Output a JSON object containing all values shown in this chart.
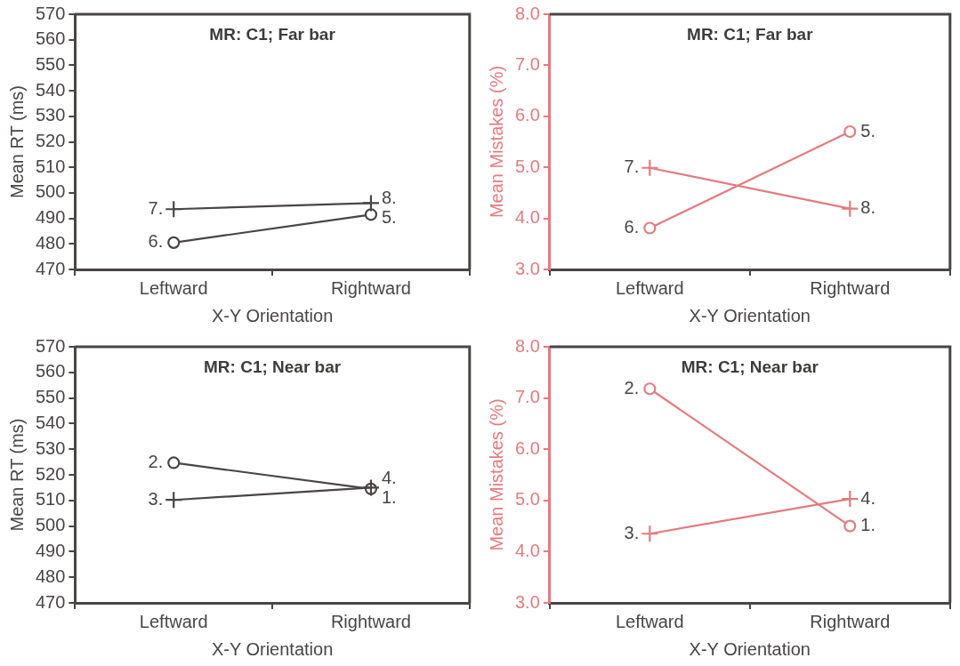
{
  "chart_data": [
    {
      "type": "line",
      "title": "MR: C1; Far bar",
      "xlabel": "X-Y Orientation",
      "ylabel": "Mean RT (ms)",
      "categories": [
        "Leftward",
        "Rightward"
      ],
      "ylim": [
        470,
        570
      ],
      "yticks": [
        470,
        480,
        490,
        500,
        510,
        520,
        530,
        540,
        550,
        560,
        570
      ],
      "grid": false,
      "legend": false,
      "series": [
        {
          "color": "#4a4444",
          "marker": "circle",
          "values": [
            480.5,
            491.5
          ]
        },
        {
          "color": "#4a4444",
          "marker": "cross",
          "values": [
            493.6,
            496
          ]
        }
      ],
      "annotations": [
        {
          "text": "6.",
          "x": "Leftward",
          "y": 480.5
        },
        {
          "text": "5.",
          "x": "Rightward",
          "y": 491.5
        },
        {
          "text": "7.",
          "x": "Leftward",
          "y": 493.6
        },
        {
          "text": "8.",
          "x": "Rightward",
          "y": 496
        }
      ]
    },
    {
      "type": "line",
      "title": "MR: C1; Far bar",
      "xlabel": "X-Y Orientation",
      "ylabel": "Mean Mistakes (%)",
      "categories": [
        "Leftward",
        "Rightward"
      ],
      "ylim": [
        3.0,
        8.0
      ],
      "yticks": [
        {
          "value": 3,
          "label": "3.0"
        },
        {
          "value": 4,
          "label": "4.0"
        },
        {
          "value": 5,
          "label": "5.0"
        },
        {
          "value": 6,
          "label": "6.0"
        },
        {
          "value": 7,
          "label": "7.0"
        },
        {
          "value": 8,
          "label": "8.0"
        }
      ],
      "grid": false,
      "legend": false,
      "series": [
        {
          "color": "#e07c80",
          "marker": "circle",
          "values": [
            3.81,
            5.7
          ]
        },
        {
          "color": "#e07c80",
          "marker": "cross",
          "values": [
            4.99,
            4.19
          ]
        }
      ],
      "annotations": [
        {
          "text": "6.",
          "x": "Leftward",
          "y": 3.81
        },
        {
          "text": "5.",
          "x": "Rightward",
          "y": 5.7
        },
        {
          "text": "7.",
          "x": "Leftward",
          "y": 4.99
        },
        {
          "text": "8.",
          "x": "Rightward",
          "y": 4.19
        }
      ]
    },
    {
      "type": "line",
      "title": "MR: C1; Near bar",
      "xlabel": "X-Y Orientation",
      "ylabel": "Mean RT (ms)",
      "categories": [
        "Leftward",
        "Rightward"
      ],
      "ylim": [
        470,
        570
      ],
      "yticks": [
        470,
        480,
        490,
        500,
        510,
        520,
        530,
        540,
        550,
        560,
        570
      ],
      "grid": false,
      "legend": false,
      "series": [
        {
          "color": "#4a4444",
          "marker": "circle",
          "values": [
            524.7,
            514.5
          ]
        },
        {
          "color": "#4a4444",
          "marker": "cross",
          "values": [
            510.2,
            515
          ]
        }
      ],
      "annotations": [
        {
          "text": "2.",
          "x": "Leftward",
          "y": 524.7
        },
        {
          "text": "1.",
          "x": "Rightward",
          "y": 514.5
        },
        {
          "text": "3.",
          "x": "Leftward",
          "y": 510.2
        },
        {
          "text": "4.",
          "x": "Rightward",
          "y": 515
        }
      ]
    },
    {
      "type": "line",
      "title": "MR: C1; Near bar",
      "xlabel": "X-Y Orientation",
      "ylabel": "Mean Mistakes (%)",
      "categories": [
        "Leftward",
        "Rightward"
      ],
      "ylim": [
        3.0,
        8.0
      ],
      "yticks": [
        {
          "value": 3,
          "label": "3.0"
        },
        {
          "value": 4,
          "label": "4.0"
        },
        {
          "value": 5,
          "label": "5.0"
        },
        {
          "value": 6,
          "label": "6.0"
        },
        {
          "value": 7,
          "label": "7.0"
        },
        {
          "value": 8,
          "label": "8.0"
        }
      ],
      "grid": false,
      "legend": false,
      "series": [
        {
          "color": "#e07c80",
          "marker": "circle",
          "values": [
            7.18,
            4.5
          ]
        },
        {
          "color": "#e07c80",
          "marker": "cross",
          "values": [
            4.35,
            5.03
          ]
        }
      ],
      "annotations": [
        {
          "text": "2.",
          "x": "Leftward",
          "y": 7.18
        },
        {
          "text": "1.",
          "x": "Rightward",
          "y": 4.5
        },
        {
          "text": "3.",
          "x": "Leftward",
          "y": 4.35
        },
        {
          "text": "4.",
          "x": "Rightward",
          "y": 5.03
        }
      ]
    }
  ]
}
